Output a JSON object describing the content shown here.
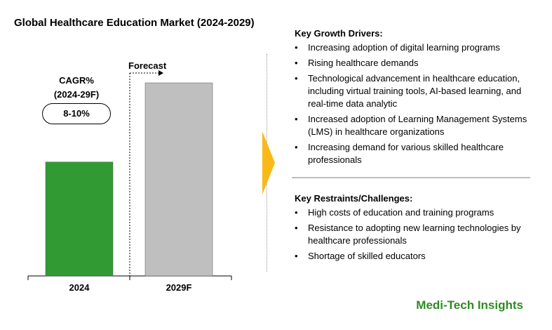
{
  "title": "Global Healthcare Education Market (2024-2029)",
  "cagr": {
    "label_line1": "CAGR%",
    "label_line2": "(2024-29F)",
    "value": "8-10%"
  },
  "forecast_label": "Forecast",
  "colors": {
    "bar_2024": "#319A33",
    "bar_2029": "#BFBFBF",
    "arrow": "#FBB918",
    "brand": "#2E8B22"
  },
  "chart_data": {
    "type": "bar",
    "categories": [
      "2024",
      "2029F"
    ],
    "values": [
      59,
      100
    ],
    "ylim": [
      0,
      100
    ],
    "grid": false
  },
  "drivers": {
    "heading": "Key Growth Drivers:",
    "items": [
      "Increasing adoption of digital learning programs",
      "Rising healthcare demands",
      "Technological advancement in healthcare education, including virtual training tools, AI-based learning, and real-time data analytic",
      "Increased adoption of Learning Management Systems (LMS) in healthcare organizations",
      "Increasing demand for various skilled healthcare professionals"
    ]
  },
  "restraints": {
    "heading": "Key Restraints/Challenges:",
    "items": [
      "High costs of education and training programs",
      "Resistance to adopting new learning technologies by healthcare professionals",
      "Shortage of skilled educators"
    ]
  },
  "bullet_char": "•",
  "brand": "Medi-Tech Insights"
}
